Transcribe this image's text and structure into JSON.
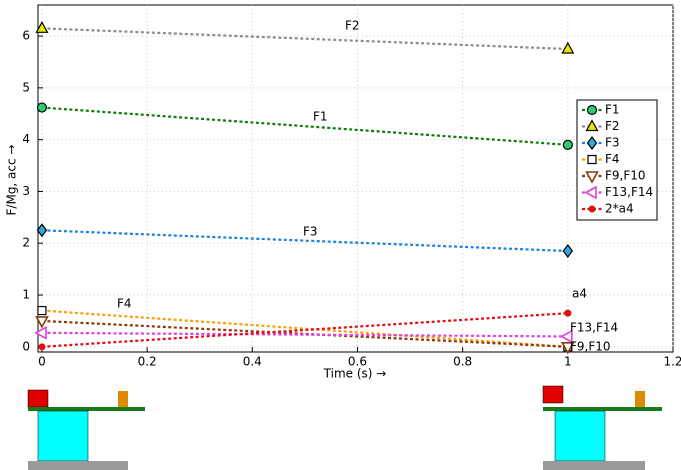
{
  "chart_data": {
    "type": "line",
    "x": [
      0,
      1
    ],
    "xlabel": "Time (s) →",
    "ylabel": "F/Mg, acc →",
    "xlim": [
      -0.0075,
      1.2
    ],
    "ylim": [
      -0.1,
      6.6
    ],
    "xticks": [
      0,
      0.2,
      0.4,
      0.6,
      0.8,
      1,
      1.2
    ],
    "yticks": [
      0,
      1,
      2,
      3,
      4,
      5,
      6
    ],
    "grid": true,
    "legend": "right",
    "series": [
      {
        "name": "F1",
        "color": "#0b7d0b",
        "marker": "circle",
        "marker_color": "#2ecc71",
        "values": [
          4.62,
          3.9
        ]
      },
      {
        "name": "F2",
        "color": "#8c8c8c",
        "marker": "triangle-up",
        "marker_color": "#e8e800",
        "values": [
          6.15,
          5.75
        ]
      },
      {
        "name": "F3",
        "color": "#1f7fe0",
        "marker": "diamond",
        "marker_color": "#33a7d8",
        "values": [
          2.25,
          1.85
        ]
      },
      {
        "name": "F4",
        "color": "#f5a000",
        "marker": "square",
        "marker_color": "#f5a000",
        "values": [
          0.7,
          0
        ]
      },
      {
        "name": "F9,F10",
        "color": "#8b3a0a",
        "marker": "triangle-down",
        "marker_color": "#8b3a0a",
        "values": [
          0.5,
          0
        ]
      },
      {
        "name": "F13,F14",
        "color": "#e040e0",
        "marker": "triangle-left",
        "marker_color": "#e040e0",
        "values": [
          0.27,
          0.2
        ]
      },
      {
        "name": "2*a4",
        "color": "#e01010",
        "marker": "dot",
        "marker_color": "#e01010",
        "values": [
          0,
          0.65
        ]
      }
    ],
    "annotations": [
      "F2",
      "F1",
      "F3",
      "F4",
      "a4",
      "F13,F14",
      "F9,F10"
    ]
  }
}
